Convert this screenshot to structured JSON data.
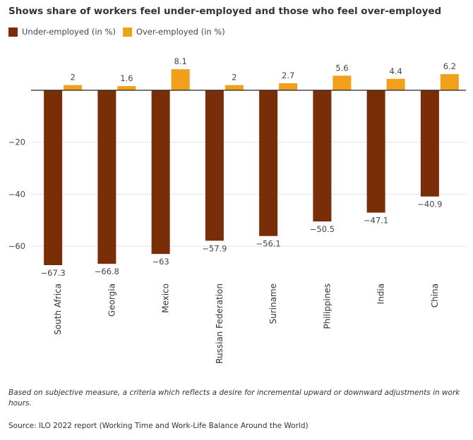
{
  "chart_data": {
    "type": "bar",
    "title": "Shows share of workers feel under-employed and those who feel over-employed",
    "categories": [
      "South Africa",
      "Georgia",
      "Mexico",
      "Russian Federation",
      "Suriname",
      "Philippines",
      "India",
      "China"
    ],
    "series": [
      {
        "name": "Under-employed (in %)",
        "color": "#7a2e08",
        "values": [
          -67.3,
          -66.8,
          -63,
          -57.9,
          -56.1,
          -50.5,
          -47.1,
          -40.9
        ]
      },
      {
        "name": "Over-employed (in %)",
        "color": "#f0a01a",
        "values": [
          2,
          1.6,
          8.1,
          2,
          2.7,
          5.6,
          4.4,
          6.2
        ]
      }
    ],
    "yticks": [
      -20,
      -40,
      -60
    ],
    "ylim": [
      -74,
      9.5
    ],
    "grid": true,
    "legend": "top-left"
  },
  "note": "Based on subjective measure, a criteria which reflects a desire for incremental upward or downward adjustments in work hours.",
  "source": "Source: ILO 2022 report (Working Time and Work-Life Balance Around the World)"
}
